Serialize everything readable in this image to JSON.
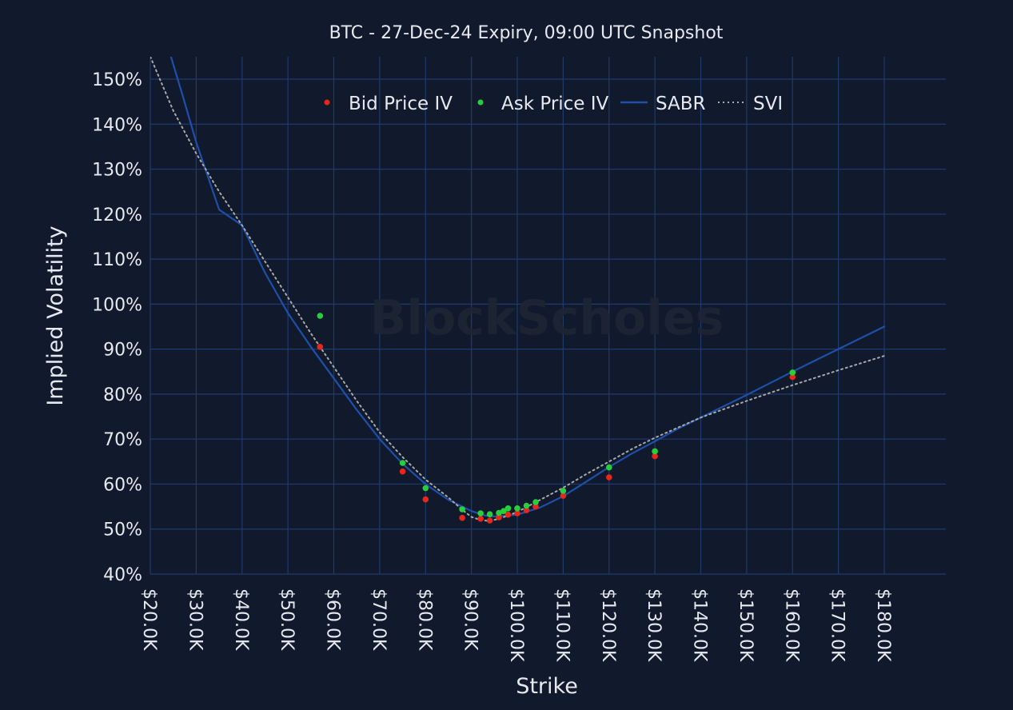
{
  "chart_data": {
    "type": "scatter",
    "title": "BTC - 27-Dec-24 Expiry, 09:00 UTC Snapshot",
    "xlabel": "Strike",
    "ylabel": "Implied Volatility",
    "watermark": "BlockScholes",
    "xlim": [
      20000,
      180000
    ],
    "ylim": [
      40,
      150
    ],
    "x_ticks": [
      20000,
      30000,
      40000,
      50000,
      60000,
      70000,
      80000,
      90000,
      100000,
      110000,
      120000,
      130000,
      140000,
      150000,
      160000,
      170000,
      180000
    ],
    "x_tick_labels": [
      "$20.0K",
      "$30.0K",
      "$40.0K",
      "$50.0K",
      "$60.0K",
      "$70.0K",
      "$80.0K",
      "$90.0K",
      "$100.0K",
      "$110.0K",
      "$120.0K",
      "$130.0K",
      "$140.0K",
      "$150.0K",
      "$160.0K",
      "$170.0K",
      "$180.0K"
    ],
    "y_ticks": [
      40,
      50,
      60,
      70,
      80,
      90,
      100,
      110,
      120,
      130,
      140,
      150
    ],
    "y_tick_labels": [
      "40%",
      "50%",
      "60%",
      "70%",
      "80%",
      "90%",
      "100%",
      "110%",
      "120%",
      "130%",
      "140%",
      "150%"
    ],
    "grid": true,
    "legend_position": "top-center",
    "series": [
      {
        "name": "Bid Price IV",
        "kind": "markers",
        "color": "#e8261b",
        "points": [
          [
            57000,
            90.5
          ],
          [
            75000,
            62.8
          ],
          [
            80000,
            56.6
          ],
          [
            88000,
            52.5
          ],
          [
            92000,
            52.3
          ],
          [
            94000,
            51.9
          ],
          [
            96000,
            52.6
          ],
          [
            98000,
            53.2
          ],
          [
            100000,
            53.5
          ],
          [
            102000,
            54.2
          ],
          [
            104000,
            55.0
          ],
          [
            110000,
            57.4
          ],
          [
            120000,
            61.5
          ],
          [
            130000,
            66.2
          ],
          [
            160000,
            83.8
          ]
        ]
      },
      {
        "name": "Ask Price IV",
        "kind": "markers",
        "color": "#27d03b",
        "points": [
          [
            57000,
            97.4
          ],
          [
            75000,
            64.7
          ],
          [
            80000,
            59.1
          ],
          [
            88000,
            54.4
          ],
          [
            92000,
            53.5
          ],
          [
            94000,
            53.3
          ],
          [
            96000,
            53.6
          ],
          [
            97000,
            54.0
          ],
          [
            98000,
            54.6
          ],
          [
            100000,
            54.6
          ],
          [
            102000,
            55.2
          ],
          [
            104000,
            56.0
          ],
          [
            110000,
            58.5
          ],
          [
            120000,
            63.7
          ],
          [
            130000,
            67.3
          ],
          [
            160000,
            84.8
          ]
        ]
      },
      {
        "name": "SABR",
        "kind": "line",
        "color": "#1f4fa8",
        "points": [
          [
            24500,
            155
          ],
          [
            27000,
            146.5
          ],
          [
            30000,
            136
          ],
          [
            35000,
            121
          ],
          [
            40000,
            117.5
          ],
          [
            45000,
            107
          ],
          [
            50000,
            98
          ],
          [
            55000,
            90.5
          ],
          [
            60000,
            83.5
          ],
          [
            65000,
            76.5
          ],
          [
            70000,
            70
          ],
          [
            75000,
            64.5
          ],
          [
            80000,
            60
          ],
          [
            85000,
            56.5
          ],
          [
            90000,
            54
          ],
          [
            93000,
            53
          ],
          [
            95000,
            52.8
          ],
          [
            98000,
            53
          ],
          [
            100000,
            53.2
          ],
          [
            105000,
            54.8
          ],
          [
            110000,
            57.3
          ],
          [
            115000,
            60.5
          ],
          [
            120000,
            63.8
          ],
          [
            125000,
            66.8
          ],
          [
            130000,
            69.5
          ],
          [
            135000,
            72.3
          ],
          [
            140000,
            74.8
          ],
          [
            150000,
            79.8
          ],
          [
            160000,
            85
          ],
          [
            170000,
            90
          ],
          [
            180000,
            95
          ]
        ]
      },
      {
        "name": "SVI",
        "kind": "dotted-line",
        "color": "#a8a8a8",
        "points": [
          [
            20000,
            155
          ],
          [
            25000,
            143
          ],
          [
            30000,
            133.5
          ],
          [
            35000,
            125
          ],
          [
            40000,
            117.5
          ],
          [
            45000,
            109.5
          ],
          [
            50000,
            101.5
          ],
          [
            55000,
            93.5
          ],
          [
            60000,
            86
          ],
          [
            65000,
            78.5
          ],
          [
            70000,
            71.5
          ],
          [
            75000,
            66
          ],
          [
            80000,
            61
          ],
          [
            85000,
            57
          ],
          [
            88000,
            54.3
          ],
          [
            90000,
            52.7
          ],
          [
            92000,
            52
          ],
          [
            94000,
            51.8
          ],
          [
            96000,
            52.3
          ],
          [
            98000,
            53
          ],
          [
            100000,
            53.8
          ],
          [
            105000,
            56.5
          ],
          [
            110000,
            59.2
          ],
          [
            115000,
            62.2
          ],
          [
            120000,
            65
          ],
          [
            125000,
            67.8
          ],
          [
            130000,
            70.3
          ],
          [
            140000,
            74.8
          ],
          [
            150000,
            78.5
          ],
          [
            160000,
            82
          ],
          [
            170000,
            85.3
          ],
          [
            180000,
            88.5
          ]
        ]
      }
    ],
    "colors": {
      "background": "#101a2c",
      "grid": "#1f3a6e",
      "text": "#e6e9ef",
      "watermark": "#1e2433"
    }
  }
}
